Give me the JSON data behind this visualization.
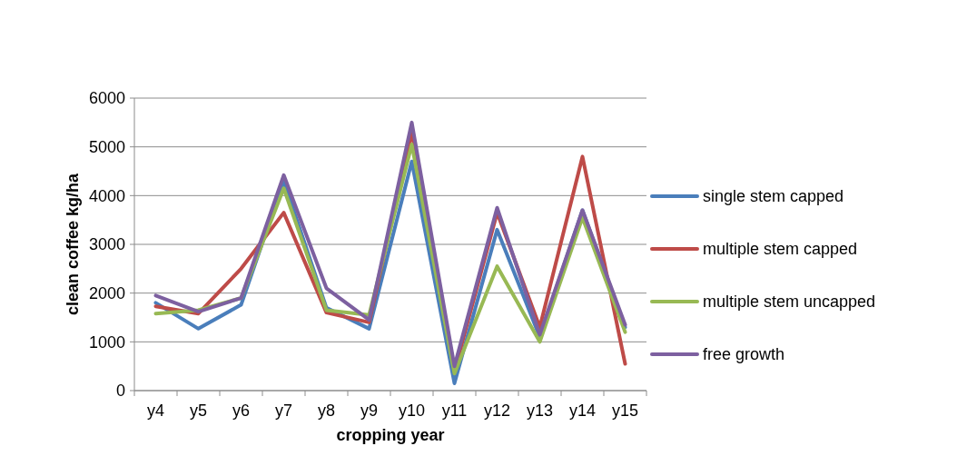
{
  "chart_data": {
    "type": "line",
    "xlabel": "cropping year",
    "ylabel": "clean coffee kg/ha",
    "categories": [
      "y4",
      "y5",
      "y6",
      "y7",
      "y8",
      "y9",
      "y10",
      "y11",
      "y12",
      "y13",
      "y14",
      "y15"
    ],
    "series": [
      {
        "name": "single stem capped",
        "color": "#4a7ebb",
        "values": [
          1800,
          1270,
          1760,
          4300,
          1700,
          1270,
          4700,
          150,
          3300,
          1100,
          3700,
          1300
        ]
      },
      {
        "name": "multiple stem capped",
        "color": "#be4b48",
        "values": [
          1730,
          1580,
          2500,
          3650,
          1600,
          1400,
          5300,
          400,
          3650,
          1300,
          4800,
          550
        ]
      },
      {
        "name": "multiple stem uncapped",
        "color": "#98b954",
        "values": [
          1580,
          1650,
          1900,
          4150,
          1650,
          1550,
          5050,
          350,
          2550,
          1000,
          3550,
          1200
        ]
      },
      {
        "name": "free growth",
        "color": "#7d60a0",
        "values": [
          1950,
          1620,
          1900,
          4420,
          2100,
          1450,
          5500,
          500,
          3750,
          1150,
          3700,
          1350
        ]
      }
    ],
    "ylim": [
      0,
      6000
    ],
    "yticks": [
      0,
      1000,
      2000,
      3000,
      4000,
      5000,
      6000
    ],
    "grid": "y",
    "legend": "right",
    "marker": "none",
    "line_style": "solid"
  }
}
